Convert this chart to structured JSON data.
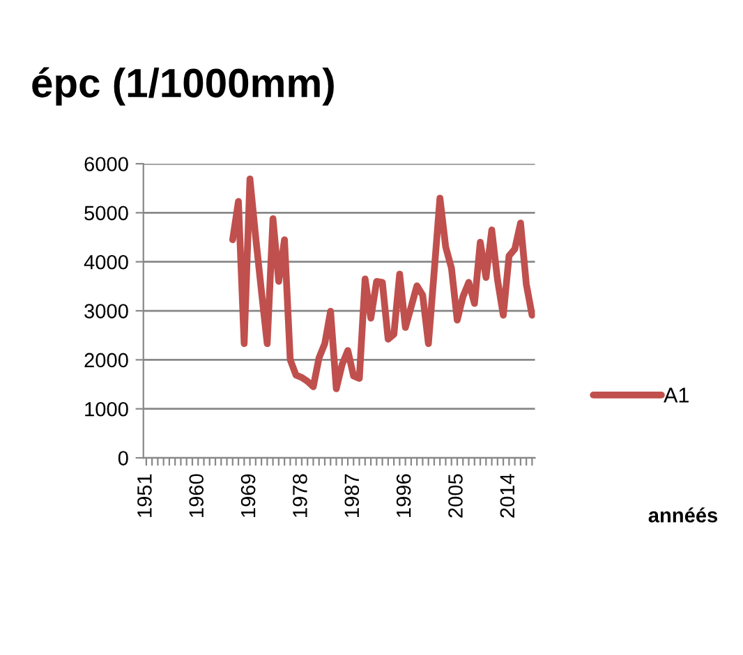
{
  "chart_data": {
    "type": "line",
    "title": "épc (1/1000mm)",
    "annotations": [
      "annéés"
    ],
    "categories": [
      "1951",
      null,
      null,
      null,
      null,
      null,
      null,
      null,
      null,
      "1960",
      null,
      null,
      null,
      null,
      null,
      null,
      null,
      null,
      "1969",
      null,
      null,
      null,
      null,
      null,
      null,
      null,
      null,
      "1978",
      null,
      null,
      null,
      null,
      null,
      null,
      null,
      null,
      "1987",
      null,
      null,
      null,
      null,
      null,
      null,
      null,
      null,
      "1996",
      null,
      null,
      null,
      null,
      null,
      null,
      null,
      null,
      "2005",
      null,
      null,
      null,
      null,
      null,
      null,
      null,
      null,
      "2014",
      null,
      null,
      null,
      null
    ],
    "series": [
      {
        "name": "A1",
        "color": "#c0504d",
        "values": [
          null,
          null,
          null,
          null,
          null,
          null,
          null,
          null,
          null,
          null,
          null,
          null,
          null,
          null,
          null,
          4450,
          5230,
          2330,
          5690,
          4500,
          3400,
          2330,
          4880,
          3600,
          4450,
          2000,
          1690,
          1640,
          1560,
          1450,
          2040,
          2330,
          2990,
          1410,
          1900,
          2190,
          1670,
          1620,
          3650,
          2850,
          3600,
          3580,
          2420,
          2520,
          3750,
          2660,
          3080,
          3510,
          3320,
          2330,
          3800,
          5300,
          4300,
          3870,
          2810,
          3290,
          3580,
          3150,
          4400,
          3680,
          4650,
          3630,
          2910,
          4120,
          4260,
          4790,
          3540,
          2910
        ]
      }
    ],
    "ylim": [
      0,
      6000
    ],
    "yticks": [
      0,
      1000,
      2000,
      3000,
      4000,
      5000,
      6000
    ],
    "grid": "y",
    "legend": "right",
    "marker": "none",
    "line_style": "solid"
  }
}
